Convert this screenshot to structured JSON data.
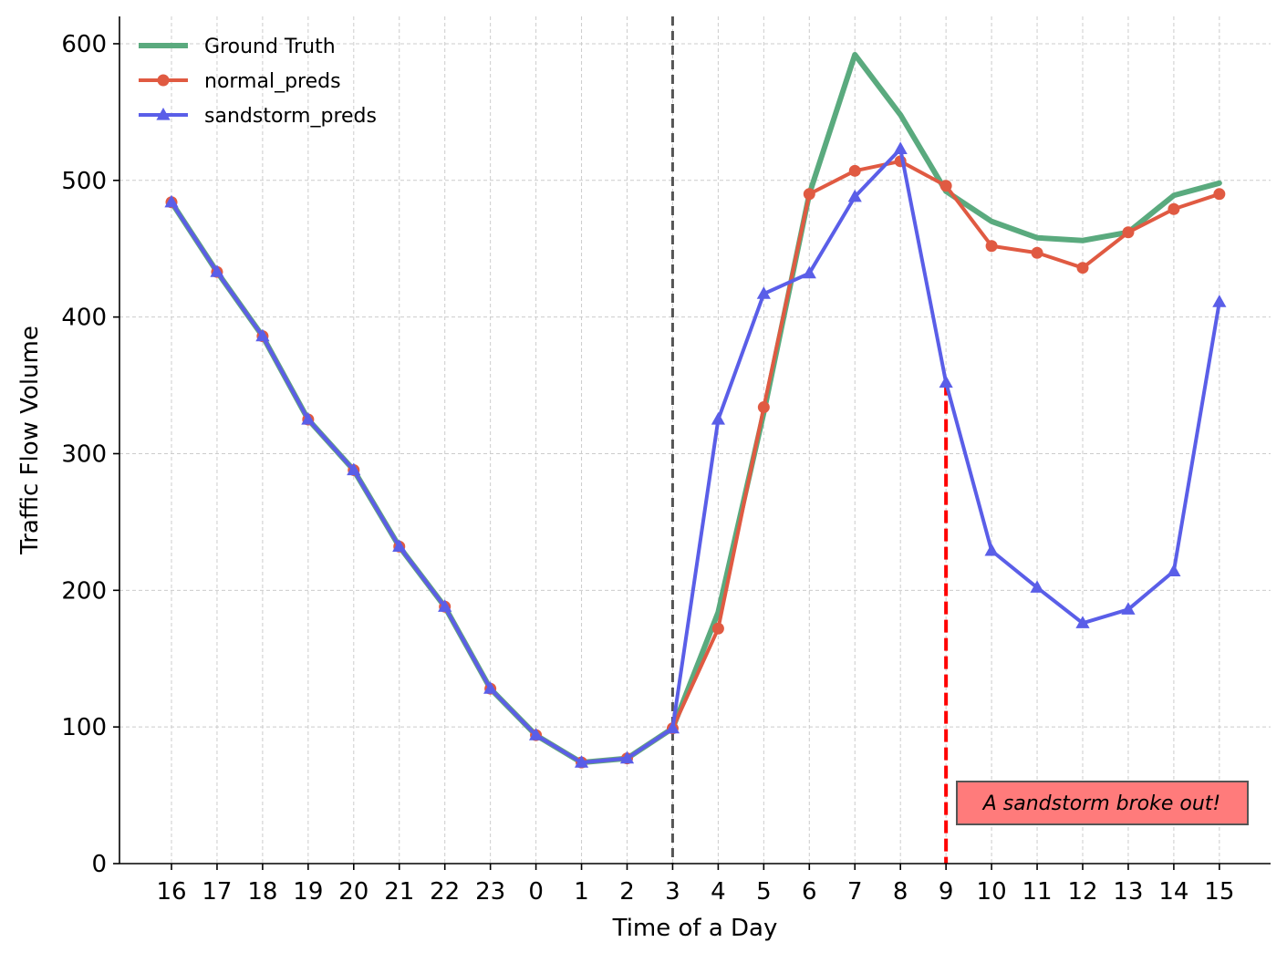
{
  "chart_data": {
    "type": "line",
    "title": "",
    "xlabel": "Time of a Day",
    "ylabel": "Traffic Flow Volume",
    "categories": [
      "16",
      "17",
      "18",
      "19",
      "20",
      "21",
      "22",
      "23",
      "0",
      "1",
      "2",
      "3",
      "4",
      "5",
      "6",
      "7",
      "8",
      "9",
      "10",
      "11",
      "12",
      "13",
      "14",
      "15"
    ],
    "ylim": [
      0,
      620
    ],
    "yticks": [
      0,
      100,
      200,
      300,
      400,
      500,
      600
    ],
    "grid": true,
    "legend_position": "top-left",
    "series": [
      {
        "name": "Ground Truth",
        "color": "#5aaa7e",
        "marker": "none",
        "values": [
          484,
          433,
          386,
          325,
          288,
          232,
          188,
          128,
          94,
          74,
          77,
          99,
          184,
          330,
          490,
          592,
          548,
          492,
          470,
          458,
          456,
          462,
          489,
          498
        ]
      },
      {
        "name": "normal_preds",
        "color": "#e05a42",
        "marker": "circle",
        "values": [
          484,
          433,
          386,
          325,
          288,
          232,
          188,
          128,
          94,
          74,
          77,
          99,
          172,
          334,
          490,
          507,
          514,
          496,
          452,
          447,
          436,
          462,
          479,
          490
        ]
      },
      {
        "name": "sandstorm_preds",
        "color": "#5a5ee8",
        "marker": "triangle",
        "values": [
          484,
          433,
          386,
          325,
          288,
          232,
          188,
          128,
          94,
          74,
          77,
          99,
          325,
          417,
          432,
          488,
          523,
          352,
          229,
          202,
          176,
          186,
          214,
          411
        ]
      }
    ],
    "reference_lines": [
      {
        "orientation": "vertical",
        "category": "3",
        "color": "#555555",
        "style": "dashed",
        "span": "full"
      },
      {
        "orientation": "vertical",
        "category": "9",
        "color": "#ff0000",
        "style": "dashed",
        "span_to_value": 352
      }
    ],
    "annotations": [
      {
        "text": "A sandstorm broke out!",
        "background": "#ff7b7b",
        "position": "bottom-right"
      }
    ]
  }
}
